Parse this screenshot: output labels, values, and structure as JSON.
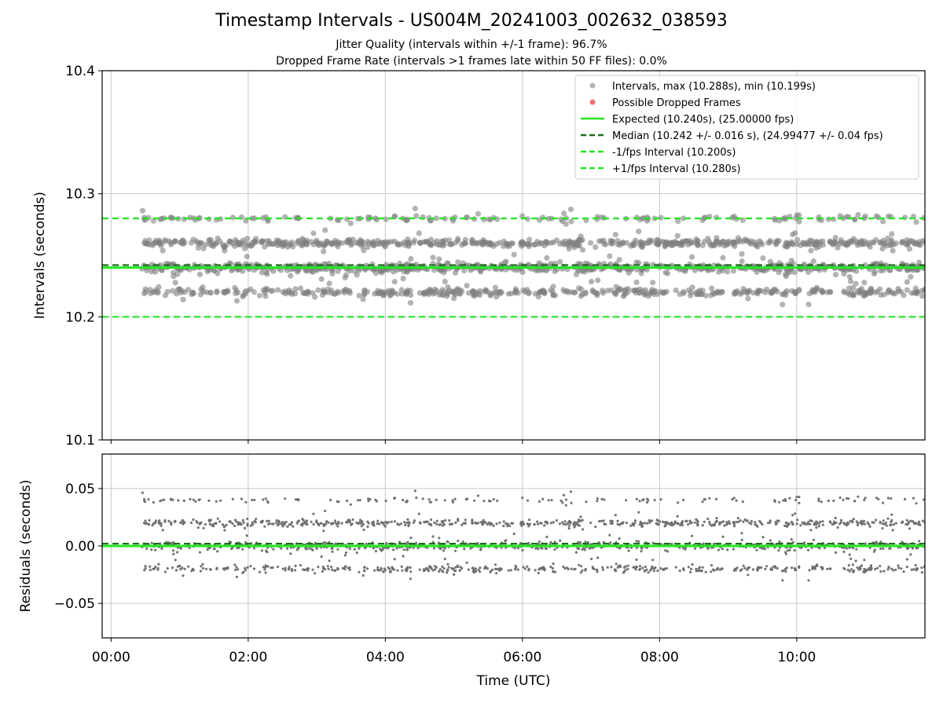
{
  "figure": {
    "title": "Timestamp Intervals - US004M_20241003_002632_038593",
    "subtitle_jitter": "Jitter Quality (intervals within +/-1 frame): 96.7%",
    "subtitle_dropped": "Dropped Frame Rate (intervals >1 frames late within 50 FF files): 0.0%"
  },
  "colors": {
    "points": "#808080",
    "dropped": "#f06060",
    "expected": "#22e622",
    "median": "#1a6e1a",
    "bounds": "#22e622",
    "grid": "#c8c8c8"
  },
  "chart_data": [
    {
      "type": "scatter",
      "panel": "top",
      "xlabel": "",
      "ylabel": "Intervals (seconds)",
      "ylim": [
        10.1,
        10.4
      ],
      "xlim_hours": [
        -0.13,
        11.87
      ],
      "yticks": [
        10.1,
        10.2,
        10.3,
        10.4
      ],
      "ytick_labels": [
        "10.1",
        "10.2",
        "10.3",
        "10.4"
      ],
      "grid": true,
      "legend_position": "top-right",
      "series": [
        {
          "name": "Intervals, max (10.288s), min (10.199s)",
          "kind": "scatter",
          "color": "#808080",
          "x_range_hours": [
            0.45,
            11.87
          ],
          "levels": [
            {
              "y": 10.22,
              "weight": 25,
              "spread": 0.0015
            },
            {
              "y": 10.24,
              "weight": 35,
              "spread": 0.0018
            },
            {
              "y": 10.26,
              "weight": 30,
              "spread": 0.0015
            },
            {
              "y": 10.28,
              "weight": 7,
              "spread": 0.0012
            }
          ],
          "max": 10.288,
          "min": 10.199
        },
        {
          "name": "Possible Dropped Frames",
          "kind": "scatter",
          "color": "#f06060",
          "values": []
        },
        {
          "name": "Expected (10.240s), (25.00000 fps)",
          "kind": "hline",
          "y": 10.24,
          "style": "solid",
          "color": "#22e622"
        },
        {
          "name": "Median (10.242 +/- 0.016 s), (24.99477 +/- 0.04 fps)",
          "kind": "hline",
          "y": 10.242,
          "style": "dashed",
          "color": "#1a6e1a"
        },
        {
          "name": "-1/fps Interval (10.200s)",
          "kind": "hline",
          "y": 10.2,
          "style": "dashed",
          "color": "#22e622"
        },
        {
          "name": "+1/fps Interval (10.280s)",
          "kind": "hline",
          "y": 10.28,
          "style": "dashed",
          "color": "#22e622"
        }
      ]
    },
    {
      "type": "scatter",
      "panel": "bottom",
      "xlabel": "Time (UTC)",
      "ylabel": "Residuals (seconds)",
      "ylim": [
        -0.08,
        0.08
      ],
      "xlim_hours": [
        -0.13,
        11.87
      ],
      "yticks": [
        -0.05,
        0.0,
        0.05
      ],
      "ytick_labels": [
        "−0.05",
        "0.00",
        "0.05"
      ],
      "xticks_hours": [
        0,
        2,
        4,
        6,
        8,
        10
      ],
      "xtick_labels": [
        "00:00",
        "02:00",
        "04:00",
        "06:00",
        "08:00",
        "10:00"
      ],
      "grid": true,
      "series": [
        {
          "name": "Residuals",
          "kind": "scatter",
          "color": "#707070",
          "x_range_hours": [
            0.45,
            11.87
          ],
          "levels": [
            {
              "y": -0.02,
              "weight": 25,
              "spread": 0.0015
            },
            {
              "y": 0.0,
              "weight": 35,
              "spread": 0.0018
            },
            {
              "y": 0.02,
              "weight": 30,
              "spread": 0.0015
            },
            {
              "y": 0.04,
              "weight": 7,
              "spread": 0.0012
            }
          ],
          "max": 0.048,
          "min": -0.041
        },
        {
          "name": "Expected",
          "kind": "hline",
          "y": 0.0,
          "style": "solid",
          "color": "#22e622"
        },
        {
          "name": "Median",
          "kind": "hline",
          "y": 0.002,
          "style": "dashed",
          "color": "#1a6e1a"
        }
      ]
    }
  ]
}
